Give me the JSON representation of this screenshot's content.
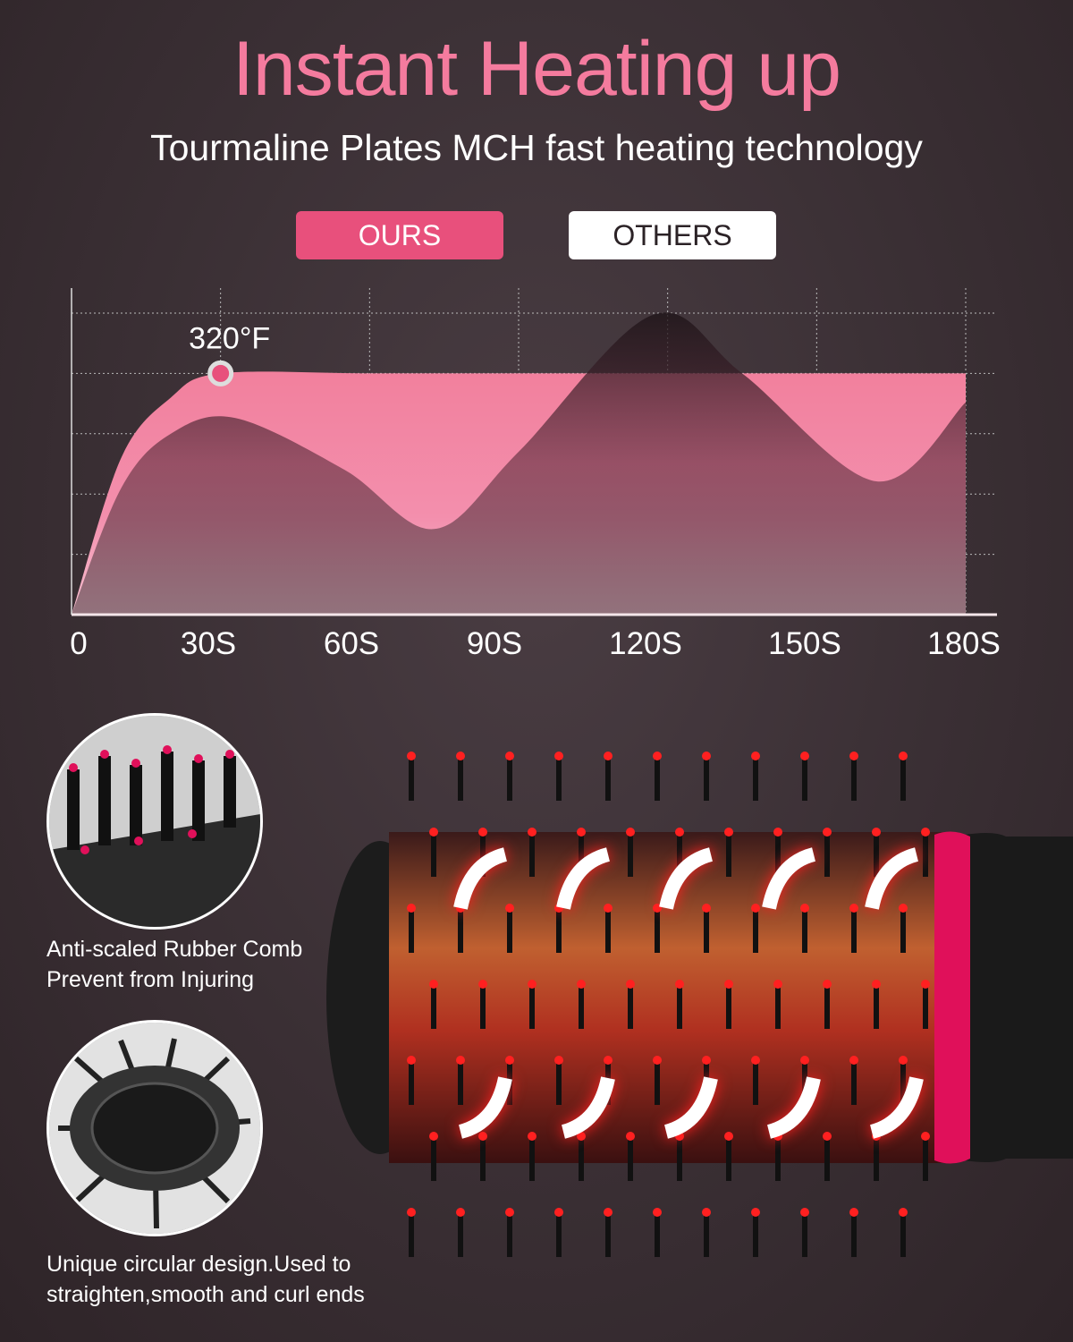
{
  "header": {
    "title": "Instant Heating up",
    "subtitle": "Tourmaline Plates MCH fast heating technology"
  },
  "legend": [
    {
      "label": "OURS",
      "color": "#e8507c"
    },
    {
      "label": "OTHERS",
      "color": "#ffffff"
    }
  ],
  "chart_data": {
    "type": "area",
    "x_tick_labels": [
      "0",
      "30S",
      "60S",
      "90S",
      "120S",
      "150S",
      "180S"
    ],
    "xlim": [
      0,
      180
    ],
    "ylim": [
      0,
      5
    ],
    "grid": true,
    "legend_placement": "top",
    "annotation": {
      "text": "320°F",
      "x": 30,
      "y": 4
    },
    "series": [
      {
        "name": "OURS",
        "color": "#f2839f",
        "x": [
          0,
          10,
          20,
          30,
          60,
          90,
          120,
          150,
          180
        ],
        "y": [
          0,
          2.6,
          3.6,
          4,
          4,
          4,
          4,
          4,
          4
        ]
      },
      {
        "name": "OTHERS",
        "color": "#2a1e24",
        "x": [
          0,
          10,
          20,
          33,
          55,
          73,
          90,
          117,
          135,
          162,
          180
        ],
        "y": [
          0,
          2.1,
          3.0,
          3.26,
          2.4,
          1.42,
          2.7,
          4.97,
          4.0,
          2.21,
          3.52
        ]
      }
    ]
  },
  "features": [
    {
      "caption_line1": "Anti-scaled Rubber Comb",
      "caption_line2": "Prevent from Injuring"
    },
    {
      "caption_line1": "Unique circular design.Used to",
      "caption_line2": "straighten,smooth and curl ends"
    }
  ],
  "colors": {
    "accent": "#f47b9e",
    "brush_pink": "#e0105a",
    "heat_red": "#ff2020"
  }
}
